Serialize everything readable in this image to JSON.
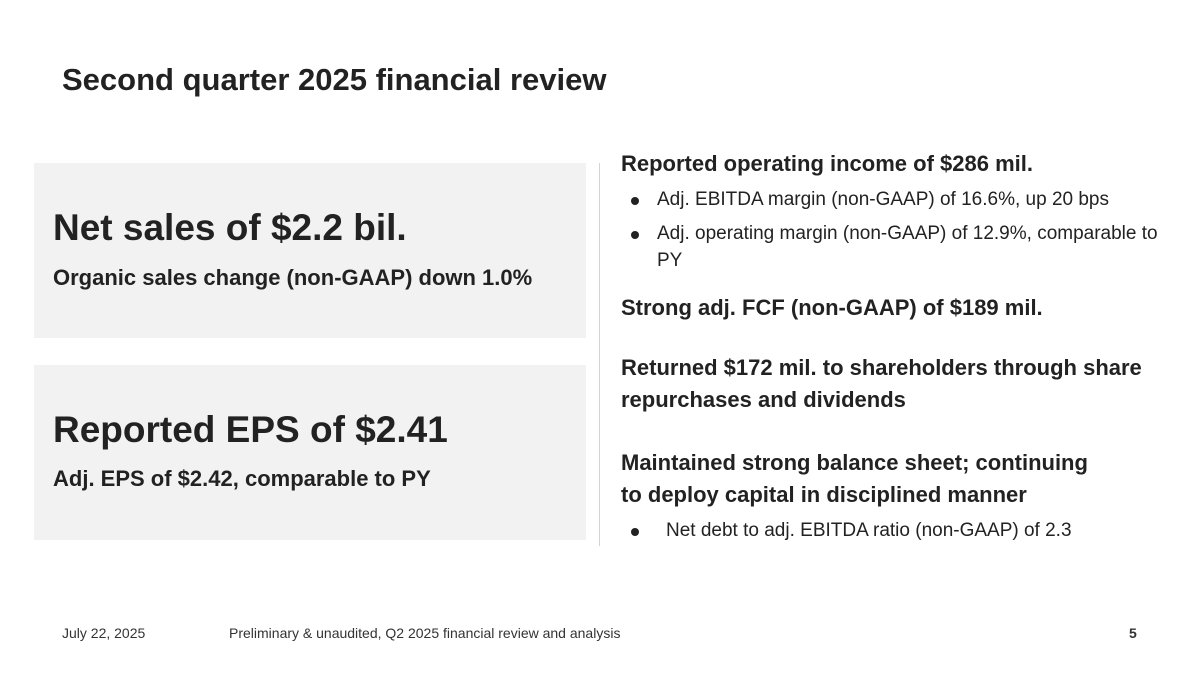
{
  "slide": {
    "title": "Second quarter 2025 financial review"
  },
  "cards": [
    {
      "headline": "Net sales of $2.2 bil.",
      "subline": "Organic sales change (non-GAAP) down 1.0%"
    },
    {
      "headline": "Reported EPS of $2.41",
      "subline": "Adj. EPS of $2.42, comparable to PY"
    }
  ],
  "highlights": {
    "operating_income": {
      "heading": "Reported operating income of $286 mil.",
      "bullets": [
        "Adj. EBITDA margin (non-GAAP) of 16.6%, up 20 bps",
        "Adj. operating margin (non-GAAP) of 12.9%, comparable to PY"
      ]
    },
    "fcf": {
      "heading": "Strong adj. FCF (non-GAAP) of $189 mil."
    },
    "returned": {
      "heading": "Returned $172 mil. to shareholders through share repurchases and dividends"
    },
    "balance_sheet": {
      "heading_line1": "Maintained strong balance sheet; continuing",
      "heading_line2": "to deploy capital in disciplined manner",
      "bullets": [
        "Net debt to adj. EBITDA ratio (non-GAAP) of 2.3"
      ]
    }
  },
  "footer": {
    "date": "July 22, 2025",
    "note": "Preliminary & unaudited, Q2 2025 financial review and analysis",
    "page_number": "5"
  }
}
